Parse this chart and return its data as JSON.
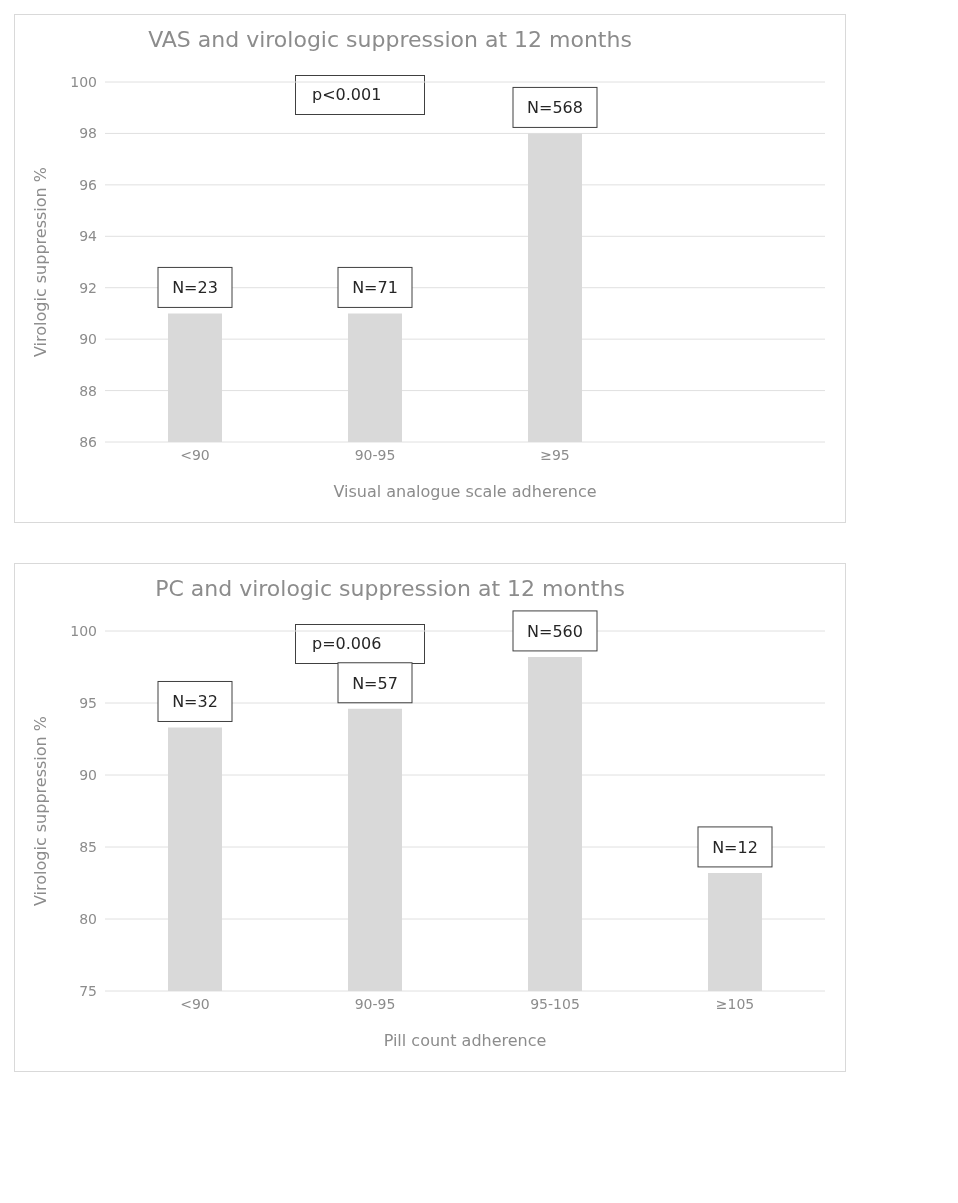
{
  "chart_data": [
    {
      "type": "bar",
      "title": "VAS and virologic suppression at 12 months",
      "xlabel": "Visual analogue scale adherence",
      "ylabel": "Virologic suppression %",
      "categories": [
        "<90",
        "90-95",
        "≥95",
        null
      ],
      "values": [
        91,
        91,
        98,
        null
      ],
      "color": "#d9d9d9",
      "ylim": [
        86,
        100
      ],
      "yticks": [
        86,
        88,
        90,
        92,
        94,
        96,
        98,
        100
      ],
      "grid": "y",
      "legend": false,
      "annotations": [
        "p<0.001",
        {
          "text": "N=23",
          "x": "<90",
          "y": 91
        },
        {
          "text": "N=71",
          "x": "90-95",
          "y": 91
        },
        {
          "text": "N=568",
          "x": "≥95",
          "y": 98
        }
      ]
    },
    {
      "type": "bar",
      "title": "PC and virologic suppression at 12 months",
      "xlabel": "Pill count adherence",
      "ylabel": "Virologic suppression %",
      "categories": [
        "<90",
        "90-95",
        "95-105",
        "≥105"
      ],
      "values": [
        93.3,
        94.6,
        98.2,
        83.2
      ],
      "color": "#d9d9d9",
      "ylim": [
        75,
        100
      ],
      "yticks": [
        75,
        80,
        85,
        90,
        95,
        100
      ],
      "grid": "y",
      "legend": false,
      "annotations": [
        "p=0.006",
        {
          "text": "N=32",
          "x": "<90",
          "y": 93.3
        },
        {
          "text": "N=57",
          "x": "90-95",
          "y": 94.6
        },
        {
          "text": "N=560",
          "x": "95-105",
          "y": 98.2
        },
        {
          "text": "N=12",
          "x": "≥105",
          "y": 83.2
        }
      ]
    }
  ]
}
